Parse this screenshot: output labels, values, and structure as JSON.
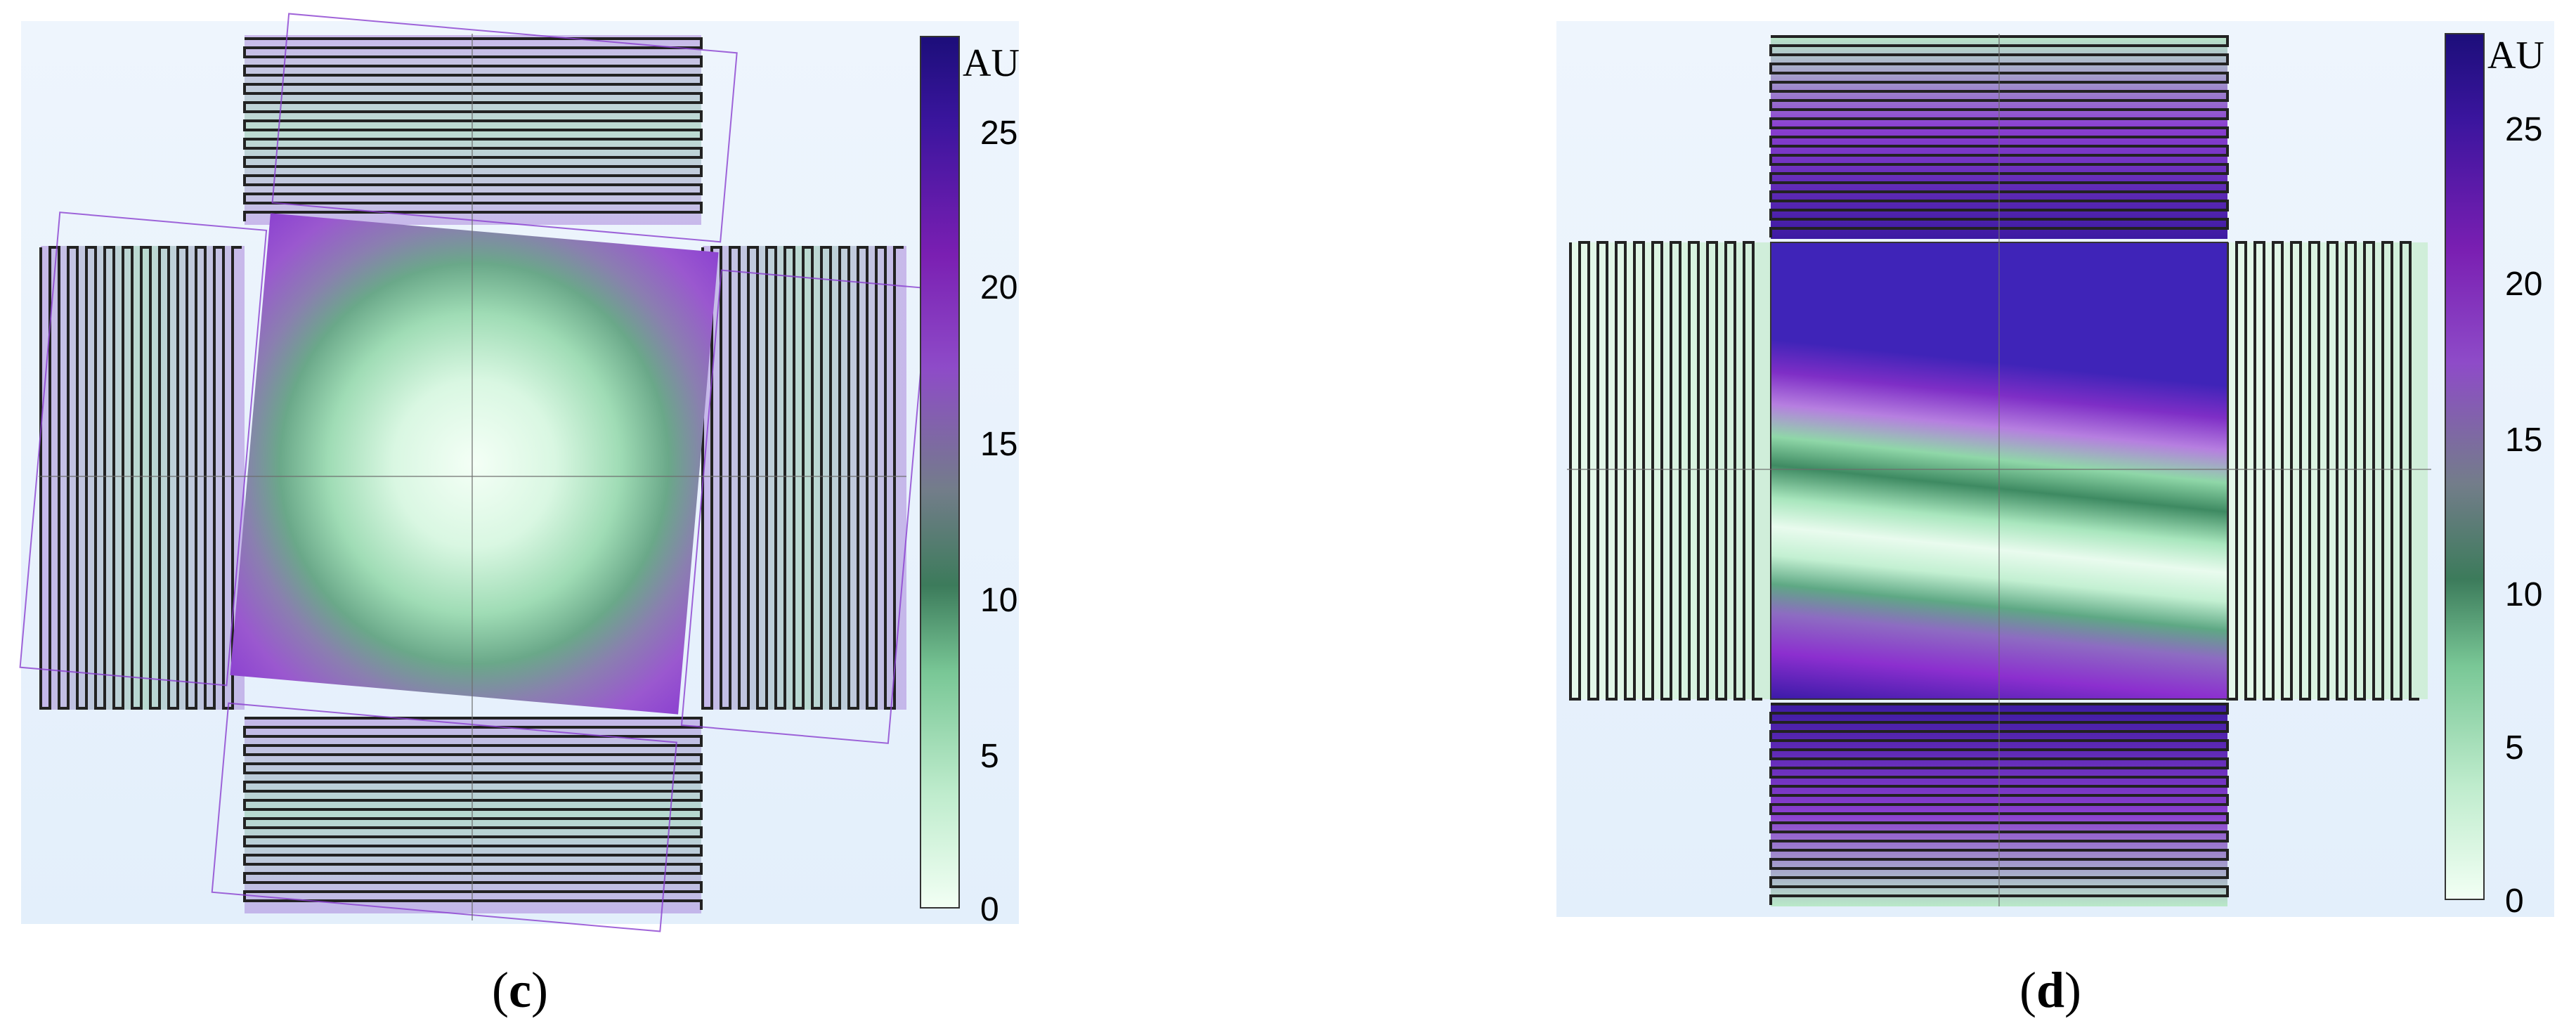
{
  "panels": [
    {
      "id": "c",
      "caption": {
        "open": "(",
        "letter": "c",
        "close": ")"
      },
      "colorbar": {
        "unit": "AU",
        "min": 0,
        "max": 27,
        "ticks": [
          "0",
          "5",
          "10",
          "15",
          "20",
          "25"
        ]
      },
      "field_pattern": "radial",
      "rotation_deg": 5
    },
    {
      "id": "d",
      "caption": {
        "open": "(",
        "letter": "d",
        "close": ")"
      },
      "colorbar": {
        "unit": "AU",
        "min": 0,
        "max": 27,
        "ticks": [
          "0",
          "5",
          "10",
          "15",
          "20",
          "25"
        ]
      },
      "field_pattern": "diagonal-bands",
      "rotation_deg": 0
    }
  ],
  "colormap": [
    "#f2fff4",
    "#bfeccd",
    "#79c796",
    "#3c7b5b",
    "#737d8a",
    "#8e4bc8",
    "#7a1fb2",
    "#3b159e",
    "#1c0e7a"
  ]
}
